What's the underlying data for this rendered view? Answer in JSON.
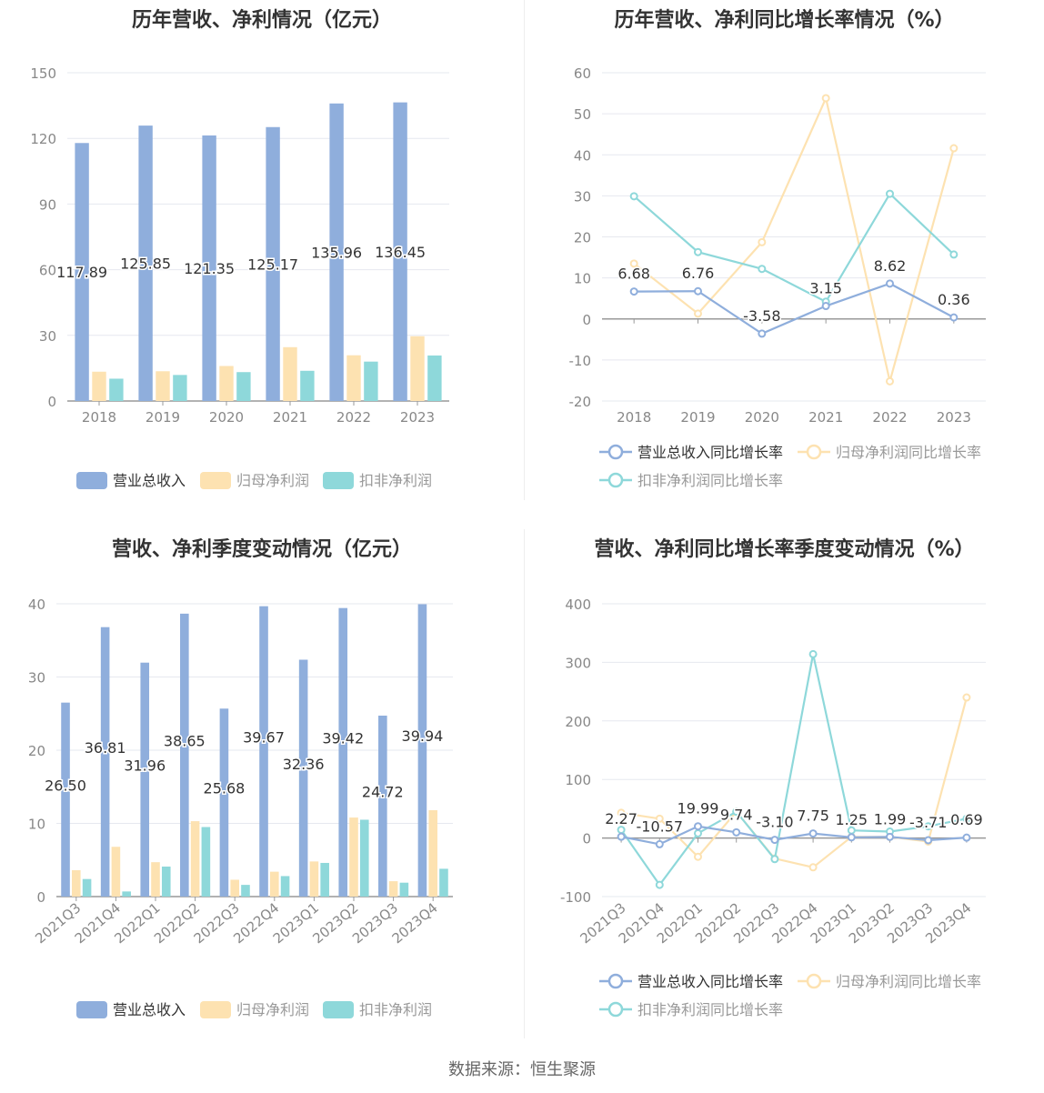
{
  "colors": {
    "revenue": "#8FAEDC",
    "net_profit": "#FDE2B1",
    "deducted_profit": "#8ED8DA",
    "axis_text": "#888888",
    "grid": "#e6e8ef"
  },
  "source": "数据来源：恒生聚源",
  "chart_data": [
    {
      "id": "annual-amount",
      "type": "bar",
      "title": "历年营收、净利情况（亿元）",
      "categories": [
        "2018",
        "2019",
        "2020",
        "2021",
        "2022",
        "2023"
      ],
      "ylim": [
        0,
        150
      ],
      "yticks": [
        0,
        30,
        60,
        90,
        120,
        150
      ],
      "series": [
        {
          "name": "营业总收入",
          "values": [
            117.89,
            125.85,
            121.35,
            125.17,
            135.96,
            136.45
          ],
          "labels": [
            "117.89",
            "125.85",
            "121.35",
            "125.17",
            "135.96",
            "136.45"
          ]
        },
        {
          "name": "归母净利润",
          "values": [
            13.4,
            13.6,
            16.0,
            24.6,
            20.9,
            29.6
          ]
        },
        {
          "name": "扣非净利润",
          "values": [
            10.2,
            11.9,
            13.2,
            13.8,
            18.0,
            20.8
          ]
        }
      ],
      "legend": "bottom"
    },
    {
      "id": "annual-growth",
      "type": "line",
      "title": "历年营收、净利同比增长率情况（%）",
      "categories": [
        "2018",
        "2019",
        "2020",
        "2021",
        "2022",
        "2023"
      ],
      "ylim": [
        -20,
        60
      ],
      "yticks": [
        -20,
        -10,
        0,
        10,
        20,
        30,
        40,
        50,
        60
      ],
      "series": [
        {
          "name": "营业总收入同比增长率",
          "values": [
            6.68,
            6.76,
            -3.58,
            3.15,
            8.62,
            0.36
          ],
          "labels": [
            "6.68",
            "6.76",
            "-3.58",
            "3.15",
            "8.62",
            "0.36"
          ]
        },
        {
          "name": "归母净利润同比增长率",
          "values": [
            13.5,
            1.3,
            18.7,
            53.8,
            -15.2,
            41.6
          ]
        },
        {
          "name": "扣非净利润同比增长率",
          "values": [
            29.9,
            16.3,
            12.2,
            4.2,
            30.5,
            15.7
          ]
        }
      ],
      "legend": "bottom"
    },
    {
      "id": "quarter-amount",
      "type": "bar",
      "title": "营收、净利季度变动情况（亿元）",
      "categories": [
        "2021Q3",
        "2021Q4",
        "2022Q1",
        "2022Q2",
        "2022Q3",
        "2022Q4",
        "2023Q1",
        "2023Q2",
        "2023Q3",
        "2023Q4"
      ],
      "ylim": [
        0,
        40
      ],
      "yticks": [
        0,
        10,
        20,
        30,
        40
      ],
      "series": [
        {
          "name": "营业总收入",
          "values": [
            26.5,
            36.81,
            31.96,
            38.65,
            25.68,
            39.67,
            32.36,
            39.42,
            24.72,
            39.94
          ],
          "labels": [
            "26.50",
            "36.81",
            "31.96",
            "38.65",
            "25.68",
            "39.67",
            "32.36",
            "39.42",
            "24.72",
            "39.94"
          ]
        },
        {
          "name": "归母净利润",
          "values": [
            3.6,
            6.8,
            4.7,
            10.3,
            2.3,
            3.4,
            4.8,
            10.8,
            2.1,
            11.8
          ]
        },
        {
          "name": "扣非净利润",
          "values": [
            2.4,
            0.7,
            4.1,
            9.5,
            1.6,
            2.8,
            4.6,
            10.5,
            1.9,
            3.8
          ]
        }
      ],
      "legend": "bottom"
    },
    {
      "id": "quarter-growth",
      "type": "line",
      "title": "营收、净利同比增长率季度变动情况（%）",
      "categories": [
        "2021Q3",
        "2021Q4",
        "2022Q1",
        "2022Q2",
        "2022Q3",
        "2022Q4",
        "2023Q1",
        "2023Q2",
        "2023Q3",
        "2023Q4"
      ],
      "ylim": [
        -100,
        400
      ],
      "yticks": [
        -100,
        0,
        100,
        200,
        300,
        400
      ],
      "series": [
        {
          "name": "营业总收入同比增长率",
          "values": [
            2.27,
            -10.57,
            19.99,
            9.74,
            -3.1,
            7.75,
            1.25,
            1.99,
            -3.71,
            0.69
          ],
          "labels": [
            "2.27",
            "-10.57",
            "19.99",
            "9.74",
            "-3.10",
            "7.75",
            "1.25",
            "1.99",
            "-3.71",
            "0.69"
          ]
        },
        {
          "name": "归母净利润同比增长率",
          "values": [
            43,
            33,
            -32,
            45,
            -35,
            -50,
            2,
            2,
            -6,
            240
          ]
        },
        {
          "name": "扣非净利润同比增长率",
          "values": [
            14,
            -80,
            8,
            45,
            -36,
            314,
            13,
            11,
            20,
            33
          ]
        }
      ],
      "legend": "bottom"
    }
  ]
}
